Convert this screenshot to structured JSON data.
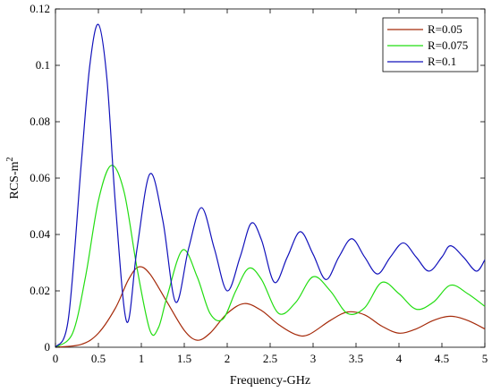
{
  "chart_data": {
    "type": "line",
    "xlabel": "Frequency-GHz",
    "ylabel": "RCS-m",
    "ylabel_superscript": "2",
    "xlim": [
      0,
      5
    ],
    "ylim": [
      0,
      0.12
    ],
    "xticks": [
      "0",
      "0.5",
      "1",
      "1.5",
      "2",
      "2.5",
      "3",
      "3.5",
      "4",
      "4.5",
      "5"
    ],
    "yticks": [
      "0",
      "0.02",
      "0.04",
      "0.06",
      "0.08",
      "0.1",
      "0.12"
    ],
    "grid": false,
    "legend_position": "top-right",
    "series": [
      {
        "name": "R=0.05",
        "color": "#a52a0a",
        "x": [
          0,
          0.3,
          0.5,
          0.7,
          0.85,
          0.97,
          1.1,
          1.3,
          1.5,
          1.65,
          1.8,
          2.0,
          2.2,
          2.4,
          2.6,
          2.8,
          2.95,
          3.2,
          3.4,
          3.6,
          3.8,
          4.0,
          4.2,
          4.4,
          4.6,
          4.8,
          5.0
        ],
        "y": [
          0,
          0.001,
          0.005,
          0.014,
          0.024,
          0.0285,
          0.026,
          0.016,
          0.006,
          0.0025,
          0.005,
          0.012,
          0.0155,
          0.013,
          0.008,
          0.0045,
          0.0045,
          0.0095,
          0.0125,
          0.0115,
          0.0075,
          0.005,
          0.0065,
          0.0095,
          0.011,
          0.0095,
          0.0065
        ]
      },
      {
        "name": "R=0.075",
        "color": "#22dd11",
        "x": [
          0,
          0.2,
          0.35,
          0.5,
          0.65,
          0.8,
          0.95,
          1.1,
          1.2,
          1.3,
          1.48,
          1.65,
          1.8,
          1.95,
          2.1,
          2.25,
          2.4,
          2.6,
          2.8,
          3.0,
          3.2,
          3.4,
          3.6,
          3.8,
          4.0,
          4.2,
          4.4,
          4.6,
          4.8,
          5.0
        ],
        "y": [
          0,
          0.005,
          0.025,
          0.052,
          0.0645,
          0.055,
          0.028,
          0.006,
          0.007,
          0.018,
          0.0345,
          0.025,
          0.012,
          0.01,
          0.02,
          0.028,
          0.024,
          0.012,
          0.016,
          0.025,
          0.02,
          0.012,
          0.014,
          0.023,
          0.019,
          0.0135,
          0.016,
          0.022,
          0.019,
          0.0145
        ]
      },
      {
        "name": "R=0.1",
        "color": "#1111bb",
        "x": [
          0,
          0.15,
          0.3,
          0.4,
          0.5,
          0.6,
          0.7,
          0.83,
          0.95,
          1.1,
          1.25,
          1.4,
          1.55,
          1.7,
          1.85,
          2.0,
          2.15,
          2.28,
          2.4,
          2.55,
          2.7,
          2.85,
          3.0,
          3.15,
          3.3,
          3.45,
          3.6,
          3.75,
          3.9,
          4.05,
          4.2,
          4.35,
          4.5,
          4.6,
          4.75,
          4.9,
          5.0
        ],
        "y": [
          0,
          0.01,
          0.065,
          0.1,
          0.1145,
          0.095,
          0.05,
          0.009,
          0.035,
          0.0615,
          0.045,
          0.016,
          0.035,
          0.0495,
          0.035,
          0.02,
          0.032,
          0.044,
          0.038,
          0.023,
          0.032,
          0.041,
          0.033,
          0.024,
          0.032,
          0.0385,
          0.032,
          0.026,
          0.032,
          0.037,
          0.032,
          0.027,
          0.032,
          0.036,
          0.032,
          0.027,
          0.031
        ]
      }
    ]
  }
}
